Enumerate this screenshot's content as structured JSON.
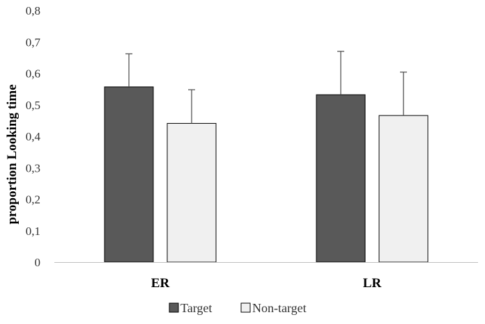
{
  "chart_data": {
    "type": "bar",
    "title": "",
    "xlabel": "",
    "ylabel": "proportion Looking time",
    "categories": [
      "ER",
      "LR"
    ],
    "series": [
      {
        "name": "Target",
        "values": [
          0.557,
          0.532
        ],
        "errors": [
          0.105,
          0.138
        ],
        "color": "#595959"
      },
      {
        "name": "Non-target",
        "values": [
          0.441,
          0.466
        ],
        "errors": [
          0.107,
          0.138
        ],
        "color": "#f0f0f0"
      }
    ],
    "ylim": [
      0,
      0.8
    ],
    "yticks": [
      "0",
      "0,1",
      "0,2",
      "0,3",
      "0,4",
      "0,5",
      "0,6",
      "0,7",
      "0,8"
    ],
    "grid": false,
    "legend_position": "bottom"
  }
}
